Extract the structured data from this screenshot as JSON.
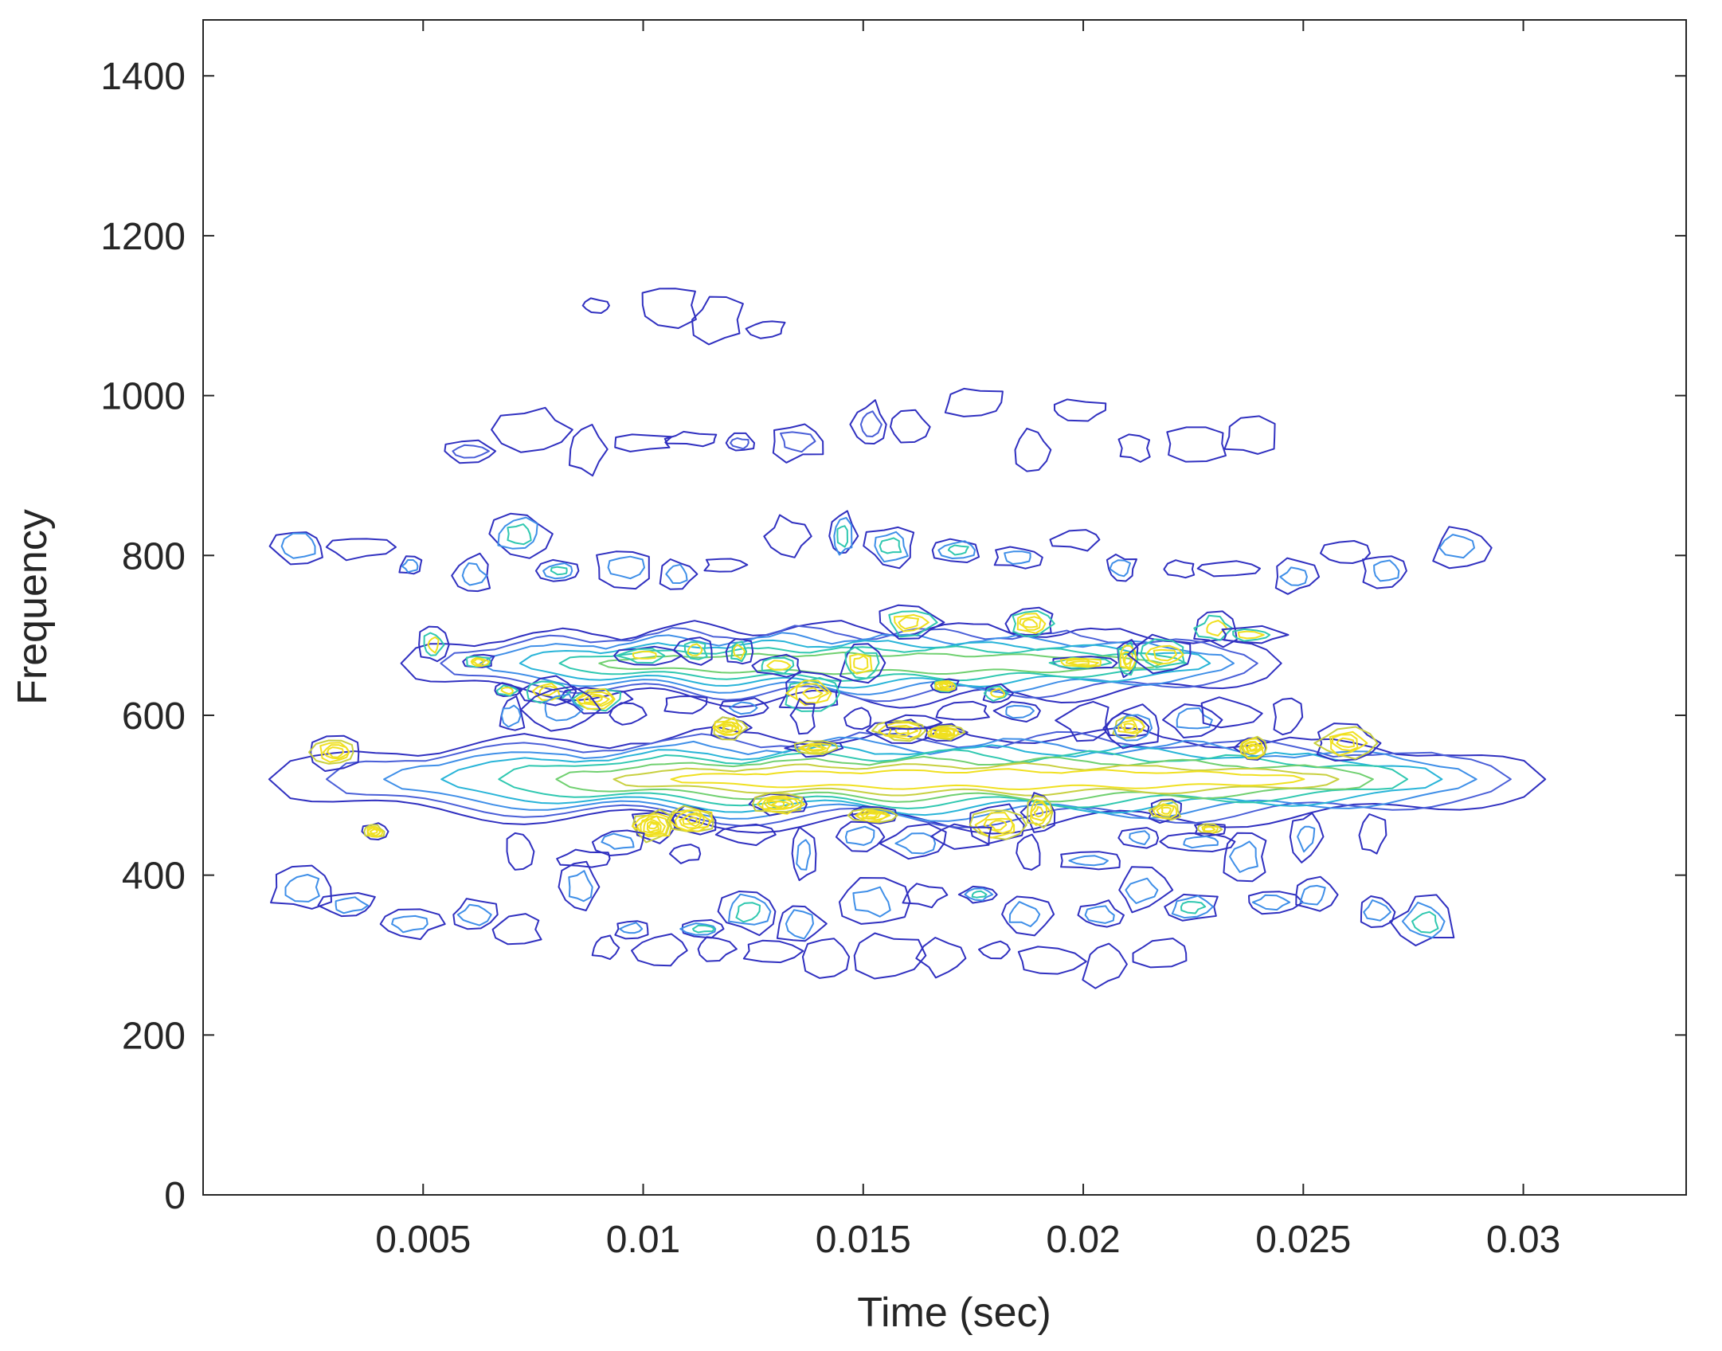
{
  "chart_data": {
    "type": "contour",
    "title": "",
    "xlabel": "Time (sec)",
    "ylabel": "Frequency",
    "xlim": [
      0,
      0.0337
    ],
    "ylim": [
      0,
      1470
    ],
    "xticks": [
      0.005,
      0.01,
      0.015,
      0.02,
      0.025,
      0.03
    ],
    "xtick_labels": [
      "0.005",
      "0.01",
      "0.015",
      "0.02",
      "0.025",
      "0.03"
    ],
    "yticks": [
      0,
      200,
      400,
      600,
      800,
      1000,
      1200,
      1400
    ],
    "ytick_labels": [
      "0",
      "200",
      "400",
      "600",
      "800",
      "1000",
      "1200",
      "1400"
    ],
    "grid": false,
    "colormap": [
      "#3030c0",
      "#4a5fd8",
      "#3f8fe8",
      "#28b4d8",
      "#30c8b0",
      "#70d070",
      "#c8d040",
      "#f0e020"
    ],
    "features": [
      {
        "x_range": [
          0.0015,
          0.0305
        ],
        "y_center": 520,
        "y_half": 55,
        "levels": 8,
        "strength": 1.0
      },
      {
        "x_range": [
          0.0045,
          0.0245
        ],
        "y_center": 665,
        "y_half": 45,
        "levels": 6,
        "strength": 0.7
      },
      {
        "x_range": [
          0.0015,
          0.029
        ],
        "y_center": 800,
        "y_half": 40,
        "levels": 3,
        "strength": 0.35
      },
      {
        "x_range": [
          0.0015,
          0.0285
        ],
        "y_center": 360,
        "y_half": 40,
        "levels": 3,
        "strength": 0.35
      },
      {
        "x_range": [
          0.0055,
          0.0245
        ],
        "y_center": 960,
        "y_half": 45,
        "levels": 2,
        "strength": 0.2
      },
      {
        "x_range": [
          0.0065,
          0.027
        ],
        "y_center": 430,
        "y_half": 30,
        "levels": 2,
        "strength": 0.25
      },
      {
        "x_range": [
          0.0065,
          0.0255
        ],
        "y_center": 600,
        "y_half": 25,
        "levels": 2,
        "strength": 0.25
      },
      {
        "x_range": [
          0.0085,
          0.0225
        ],
        "y_center": 300,
        "y_half": 20,
        "levels": 1,
        "strength": 0.15
      },
      {
        "x_range": [
          0.0085,
          0.0135
        ],
        "y_center": 1100,
        "y_half": 30,
        "levels": 1,
        "strength": 0.1
      }
    ]
  }
}
